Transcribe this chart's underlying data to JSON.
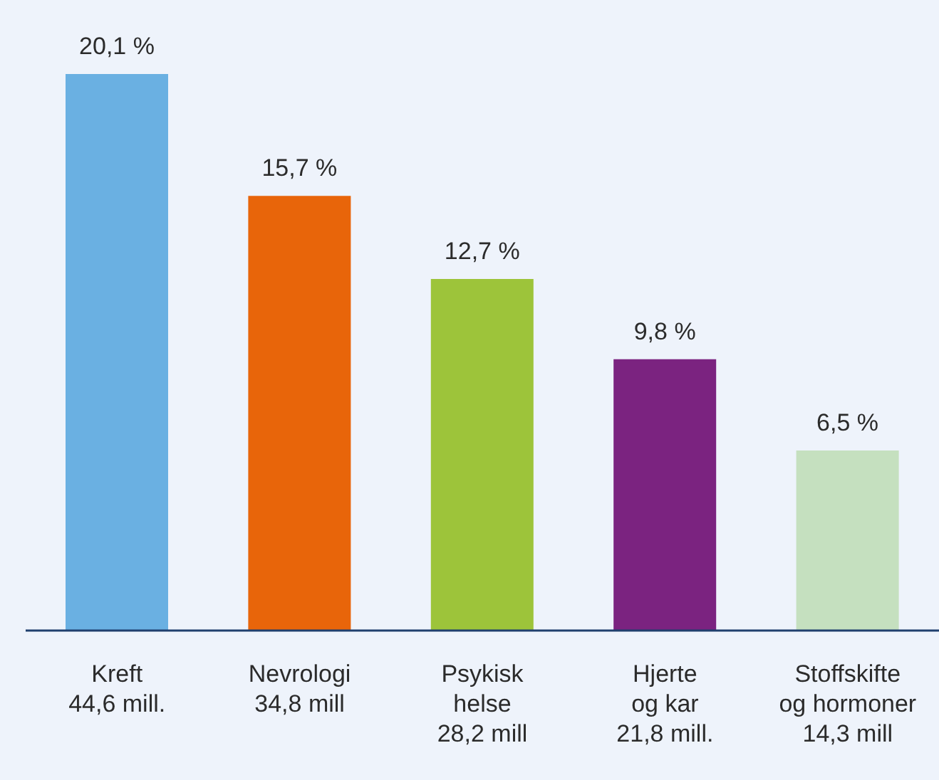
{
  "chart_data": {
    "type": "bar",
    "categories": [
      "Kreft\n44,6 mill.",
      "Nevrologi\n34,8 mill",
      "Psykisk\nhelse\n28,2 mill",
      "Hjerte\nog kar\n21,8 mill.",
      "Stoffskifte\nog hormoner\n14,3 mill"
    ],
    "values": [
      20.1,
      15.7,
      12.7,
      9.8,
      6.5
    ],
    "value_labels": [
      "20,1 %",
      "15,7 %",
      "12,7 %",
      "9,8 %",
      "6,5 %"
    ],
    "colors": [
      "#6ab0e2",
      "#e8650a",
      "#9dc43a",
      "#7b2380",
      "#c5e0bf"
    ]
  }
}
